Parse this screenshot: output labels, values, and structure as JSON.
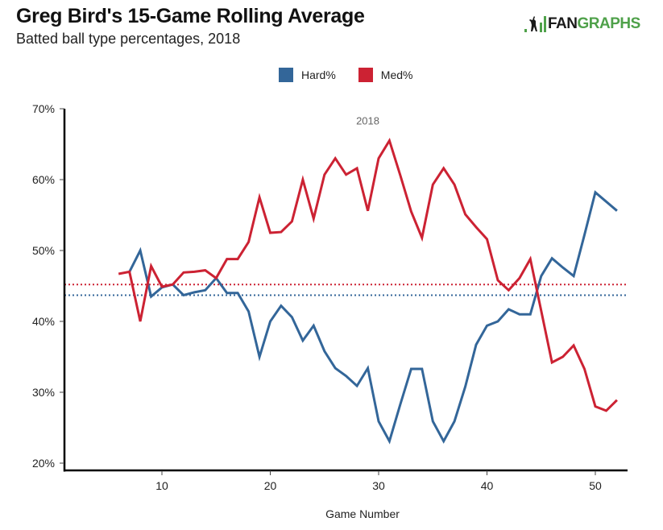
{
  "header": {
    "title": "Greg Bird's 15-Game Rolling Average",
    "subtitle": "Batted ball type percentages, 2018"
  },
  "logo": {
    "fan": "FAN",
    "graphs": "GRAPHS",
    "icon": "batter-icon"
  },
  "chart_data": {
    "type": "line",
    "title": "Greg Bird's 15-Game Rolling Average",
    "subtitle": "Batted ball type percentages, 2018",
    "xlabel": "Game Number",
    "ylabel": "",
    "xlim": [
      1,
      53
    ],
    "ylim": [
      20,
      70
    ],
    "xticks": [
      10,
      20,
      30,
      40,
      50
    ],
    "xtick_labels": [
      "10",
      "20",
      "30",
      "40",
      "50"
    ],
    "yticks": [
      20,
      30,
      40,
      50,
      60,
      70
    ],
    "ytick_labels": [
      "20%",
      "30%",
      "40%",
      "50%",
      "60%",
      "70%"
    ],
    "grid": false,
    "legend_position": "top-center",
    "annotations": [
      {
        "text": "2018",
        "x": 29,
        "y": 68
      }
    ],
    "series": [
      {
        "name": "Hard%",
        "color": "#336699",
        "x": [
          7,
          8,
          9,
          10,
          11,
          12,
          13,
          14,
          15,
          16,
          17,
          18,
          19,
          20,
          21,
          22,
          23,
          24,
          25,
          26,
          27,
          28,
          29,
          30,
          31,
          32,
          33,
          34,
          35,
          36,
          37,
          38,
          39,
          40,
          41,
          42,
          43,
          44,
          45,
          46,
          47,
          48,
          49,
          50,
          51,
          52
        ],
        "values": [
          47.0,
          50.0,
          43.5,
          44.8,
          45.2,
          43.7,
          44.1,
          44.4,
          46.1,
          44.0,
          44.0,
          41.4,
          35.0,
          40.0,
          42.2,
          40.6,
          37.3,
          39.4,
          35.8,
          33.4,
          32.3,
          30.9,
          33.4,
          25.9,
          23.1,
          28.3,
          33.3,
          33.3,
          25.9,
          23.1,
          25.9,
          30.8,
          36.7,
          39.4,
          40.0,
          41.7,
          41.0,
          41.0,
          46.4,
          48.9,
          47.6,
          46.4,
          52.2,
          58.2,
          56.9,
          55.6
        ]
      },
      {
        "name": "Med%",
        "color": "#cc2233",
        "x": [
          6,
          7,
          8,
          9,
          10,
          11,
          12,
          13,
          14,
          15,
          16,
          17,
          18,
          19,
          20,
          21,
          22,
          23,
          24,
          25,
          26,
          27,
          28,
          29,
          30,
          31,
          32,
          33,
          34,
          35,
          36,
          37,
          38,
          39,
          40,
          41,
          42,
          43,
          44,
          45,
          46,
          47,
          48,
          49,
          50,
          51,
          52
        ],
        "values": [
          46.7,
          47.0,
          40.0,
          47.8,
          44.9,
          45.2,
          46.9,
          47.0,
          47.2,
          46.1,
          48.8,
          48.8,
          51.2,
          57.5,
          52.5,
          52.6,
          54.1,
          60.0,
          54.5,
          60.7,
          63.0,
          60.7,
          61.6,
          55.6,
          63.0,
          65.5,
          60.6,
          55.5,
          51.8,
          59.3,
          61.6,
          59.3,
          55.1,
          53.3,
          51.6,
          45.8,
          44.4,
          46.1,
          48.8,
          41.5,
          34.2,
          35.0,
          36.6,
          33.3,
          28.0,
          27.4,
          28.9
        ]
      }
    ],
    "reference_lines": [
      {
        "name": "Hard% average",
        "series": "Hard%",
        "value": 43.7,
        "style": "dotted",
        "color": "#336699"
      },
      {
        "name": "Med% average",
        "series": "Med%",
        "value": 45.2,
        "style": "dotted",
        "color": "#cc2233"
      }
    ]
  }
}
